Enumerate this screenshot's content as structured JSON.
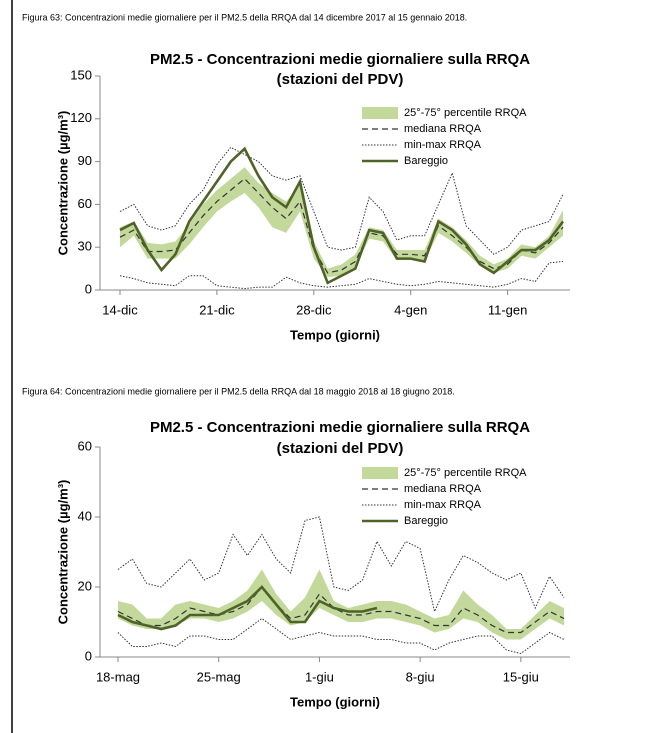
{
  "chart_data": [
    {
      "type": "line",
      "caption": "Figura 63: Concentrazioni medie giornaliere per il PM2.5 della RRQA dal 14 dicembre 2017 al 15 gennaio 2018.",
      "title": "PM2.5 - Concentrazioni medie giornaliere sulla RRQA",
      "subtitle": "(stazioni del PDV)",
      "ylabel": "Concentrazione (µg/m³)",
      "xlabel": "Tempo (giorni)",
      "categories": [
        "14-dic",
        null,
        null,
        null,
        null,
        null,
        null,
        "21-dic",
        null,
        null,
        null,
        null,
        null,
        null,
        "28-dic",
        null,
        null,
        null,
        null,
        null,
        null,
        "4-gen",
        null,
        null,
        null,
        null,
        null,
        null,
        "11-gen",
        null,
        null,
        null,
        null
      ],
      "ylim": [
        0,
        150
      ],
      "yticks": [
        0,
        30,
        60,
        90,
        120,
        150
      ],
      "grid": false,
      "legend": "upper right",
      "series": [
        {
          "name": "25°-75° percentile RRQA",
          "style": "band",
          "color": "#c3d99b",
          "low": [
            30,
            38,
            22,
            22,
            22,
            32,
            44,
            55,
            62,
            68,
            58,
            44,
            40,
            55,
            22,
            9,
            10,
            16,
            36,
            34,
            21,
            21,
            20,
            40,
            34,
            26,
            17,
            12,
            15,
            24,
            22,
            30,
            38
          ],
          "high": [
            44,
            48,
            33,
            32,
            34,
            46,
            60,
            70,
            78,
            86,
            75,
            68,
            62,
            74,
            34,
            15,
            18,
            25,
            44,
            42,
            28,
            28,
            28,
            50,
            44,
            35,
            24,
            18,
            22,
            32,
            30,
            38,
            56
          ]
        },
        {
          "name": "mediana RRQA",
          "style": "dashed",
          "color": "#333333",
          "values": [
            37,
            42,
            27,
            27,
            28,
            40,
            52,
            62,
            70,
            78,
            68,
            58,
            50,
            62,
            28,
            12,
            14,
            20,
            40,
            38,
            25,
            25,
            24,
            45,
            38,
            30,
            20,
            15,
            18,
            28,
            26,
            33,
            44
          ]
        },
        {
          "name": "min-max RRQA",
          "style": "dotted",
          "color": "#333333",
          "min": [
            10,
            8,
            5,
            4,
            3,
            10,
            10,
            3,
            2,
            1,
            2,
            2,
            9,
            5,
            3,
            2,
            3,
            4,
            8,
            6,
            4,
            3,
            4,
            6,
            5,
            4,
            3,
            2,
            4,
            8,
            6,
            19,
            20
          ],
          "max": [
            55,
            60,
            45,
            42,
            45,
            60,
            70,
            88,
            100,
            95,
            90,
            80,
            77,
            80,
            55,
            30,
            28,
            30,
            65,
            55,
            35,
            38,
            38,
            60,
            82,
            45,
            35,
            25,
            30,
            42,
            45,
            48,
            67
          ]
        },
        {
          "name": "Bareggio",
          "style": "solid",
          "color": "#4f6228",
          "values": [
            42,
            47,
            28,
            14,
            25,
            48,
            62,
            76,
            90,
            99,
            80,
            65,
            58,
            76,
            30,
            5,
            10,
            15,
            42,
            40,
            22,
            22,
            20,
            48,
            42,
            32,
            18,
            12,
            20,
            28,
            28,
            35,
            48
          ]
        }
      ]
    },
    {
      "type": "line",
      "caption": "Figura 64: Concentrazioni medie giornaliere per il PM2.5 della RRQA dal 18 maggio 2018 al 18 giugno 2018.",
      "title": "PM2.5 - Concentrazioni medie giornaliere sulla RRQA",
      "subtitle": "(stazioni del PDV)",
      "ylabel": "Concentrazione (µg/m³)",
      "xlabel": "Tempo (giorni)",
      "categories": [
        "18-mag",
        null,
        null,
        null,
        null,
        null,
        null,
        "25-mag",
        null,
        null,
        null,
        null,
        null,
        null,
        "1-giu",
        null,
        null,
        null,
        null,
        null,
        null,
        "8-giu",
        null,
        null,
        null,
        null,
        null,
        null,
        "15-giu",
        null,
        null,
        null
      ],
      "ylim": [
        0,
        60
      ],
      "yticks": [
        0,
        20,
        40,
        60
      ],
      "grid": false,
      "legend": "upper right",
      "series": [
        {
          "name": "25°-75° percentile RRQA",
          "style": "band",
          "color": "#c3d99b",
          "low": [
            11,
            9,
            8,
            8,
            9,
            11,
            11,
            10,
            11,
            13,
            16,
            12,
            9,
            10,
            14,
            12,
            10,
            10,
            11,
            11,
            10,
            9,
            7,
            8,
            11,
            10,
            7,
            5,
            5,
            8,
            11,
            9
          ],
          "high": [
            16,
            15,
            11,
            11,
            15,
            16,
            15,
            14,
            16,
            19,
            25,
            18,
            13,
            17,
            25,
            16,
            14,
            15,
            16,
            16,
            15,
            13,
            11,
            12,
            19,
            15,
            12,
            8,
            8,
            12,
            16,
            14
          ]
        },
        {
          "name": "mediana RRQA",
          "style": "dashed",
          "color": "#333333",
          "values": [
            13,
            11,
            9,
            9,
            11,
            14,
            13,
            12,
            13,
            15,
            20,
            15,
            11,
            12,
            18,
            14,
            12,
            12,
            13,
            13,
            12,
            11,
            9,
            9,
            14,
            12,
            9,
            7,
            7,
            10,
            13,
            11
          ]
        },
        {
          "name": "min-max RRQA",
          "style": "dotted",
          "color": "#333333",
          "min": [
            7,
            3,
            3,
            4,
            3,
            6,
            6,
            5,
            5,
            8,
            11,
            8,
            5,
            6,
            7,
            6,
            6,
            6,
            5,
            5,
            4,
            4,
            2,
            4,
            5,
            6,
            6,
            2,
            1,
            4,
            7,
            5
          ],
          "max": [
            25,
            28,
            21,
            20,
            24,
            28,
            22,
            24,
            35,
            29,
            35,
            28,
            24,
            39,
            40,
            20,
            19,
            22,
            33,
            26,
            33,
            31,
            13,
            22,
            29,
            27,
            24,
            22,
            24,
            14,
            23,
            17
          ]
        },
        {
          "name": "Bareggio",
          "style": "solid",
          "color": "#4f6228",
          "values": [
            12,
            10,
            9,
            8,
            9,
            12,
            12,
            12,
            14,
            16,
            20,
            15,
            10,
            10,
            16,
            14,
            13,
            13,
            14,
            null,
            null,
            null,
            null,
            null,
            null,
            null,
            null,
            null,
            null,
            null,
            null,
            null
          ]
        }
      ]
    }
  ]
}
